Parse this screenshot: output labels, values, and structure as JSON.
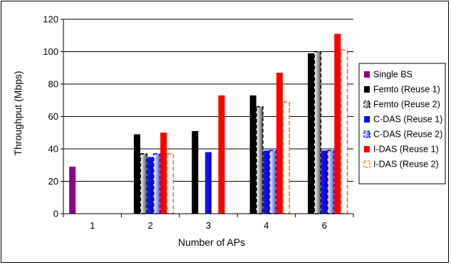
{
  "chart_data": {
    "type": "bar",
    "xlabel": "Number of APs",
    "ylabel": "Throughput (Mbps)",
    "ylim": [
      0,
      120
    ],
    "yticks": [
      0,
      20,
      40,
      60,
      80,
      100,
      120
    ],
    "grid": true,
    "legend_position": "right",
    "categories": [
      "1",
      "2",
      "3",
      "4",
      "6"
    ],
    "series": [
      {
        "name": "Single BS",
        "style": "solid",
        "color": "#8b008b",
        "values": [
          29,
          null,
          null,
          null,
          null
        ]
      },
      {
        "name": "Femto (Reuse 1)",
        "style": "solid",
        "color": "#000000",
        "values": [
          null,
          49,
          51,
          73,
          99
        ]
      },
      {
        "name": "Femto (Reuse 2)",
        "style": "dashed-gradient",
        "color": "#000000",
        "values": [
          null,
          37,
          null,
          66,
          100
        ]
      },
      {
        "name": "C-DAS (Reuse 1)",
        "style": "solid",
        "color": "#0000ff",
        "values": [
          null,
          35,
          38,
          39,
          39
        ]
      },
      {
        "name": "C-DAS (Reuse 2)",
        "style": "dashed-gradient",
        "color": "#0000ff",
        "values": [
          null,
          37,
          null,
          39,
          39
        ]
      },
      {
        "name": "I-DAS (Reuse 1)",
        "style": "solid",
        "color": "#ff0000",
        "values": [
          null,
          50,
          73,
          87,
          111
        ]
      },
      {
        "name": "I-DAS (Reuse 2)",
        "style": "dashed",
        "color": "#ff6600",
        "values": [
          null,
          37,
          null,
          69,
          101
        ]
      }
    ]
  }
}
